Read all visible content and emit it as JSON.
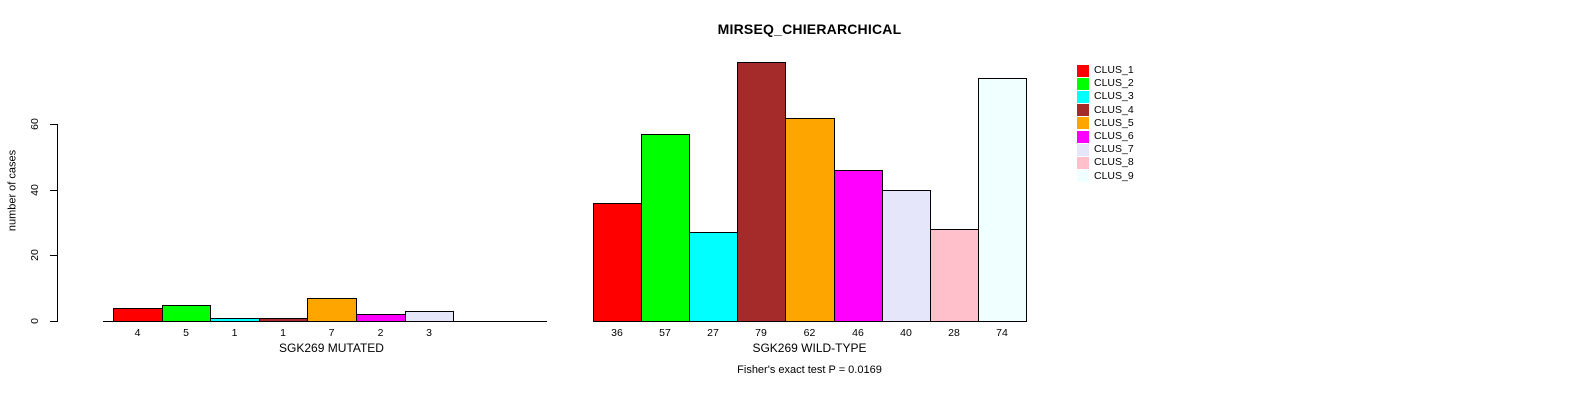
{
  "title": "MIRSEQ_CHIERARCHICAL",
  "footnote": "Fisher's exact test P = 0.0169",
  "palette": [
    "#FF0000",
    "#00FF00",
    "#00FFFF",
    "#A52A2A",
    "#FFA500",
    "#FF00FF",
    "#E6E6FA",
    "#FFC0CB",
    "#F0FFFF"
  ],
  "y_axis": {
    "label": "number of cases",
    "ticks": [
      0,
      20,
      40,
      60
    ]
  },
  "legend": {
    "position": "top-right",
    "items": [
      {
        "label": "CLUS_1",
        "color": "#FF0000"
      },
      {
        "label": "CLUS_2",
        "color": "#00FF00"
      },
      {
        "label": "CLUS_3",
        "color": "#00FFFF"
      },
      {
        "label": "CLUS_4",
        "color": "#A52A2A"
      },
      {
        "label": "CLUS_5",
        "color": "#FFA500"
      },
      {
        "label": "CLUS_6",
        "color": "#FF00FF"
      },
      {
        "label": "CLUS_7",
        "color": "#E6E6FA"
      },
      {
        "label": "CLUS_8",
        "color": "#FFC0CB"
      },
      {
        "label": "CLUS_9",
        "color": "#F0FFFF"
      }
    ]
  },
  "chart_data": [
    {
      "type": "bar",
      "title": "MIRSEQ_CHIERARCHICAL",
      "xlabel": "SGK269 MUTATED",
      "ylabel": "number of cases",
      "categories": [
        "CLUS_1",
        "CLUS_2",
        "CLUS_3",
        "CLUS_4",
        "CLUS_5",
        "CLUS_6",
        "CLUS_7",
        "CLUS_8",
        "CLUS_9"
      ],
      "values": [
        4,
        5,
        1,
        1,
        7,
        2,
        3,
        0,
        0
      ],
      "bar_labels": [
        "4",
        "5",
        "1",
        "1",
        "7",
        "2",
        "3",
        "",
        ""
      ],
      "ylim": [
        0,
        80
      ],
      "yticks": [
        0,
        20,
        40,
        60
      ],
      "grid": false,
      "bar_gap": 0
    },
    {
      "type": "bar",
      "title": "",
      "xlabel": "SGK269 WILD-TYPE",
      "ylabel": "number of cases",
      "categories": [
        "CLUS_1",
        "CLUS_2",
        "CLUS_3",
        "CLUS_4",
        "CLUS_5",
        "CLUS_6",
        "CLUS_7",
        "CLUS_8",
        "CLUS_9"
      ],
      "values": [
        36,
        57,
        27,
        79,
        62,
        46,
        40,
        28,
        74
      ],
      "bar_labels": [
        "36",
        "57",
        "27",
        "79",
        "62",
        "46",
        "40",
        "28",
        "74"
      ],
      "ylim": [
        0,
        80
      ],
      "yticks": [
        0,
        20,
        40,
        60
      ],
      "grid": false,
      "bar_gap": 0
    }
  ]
}
